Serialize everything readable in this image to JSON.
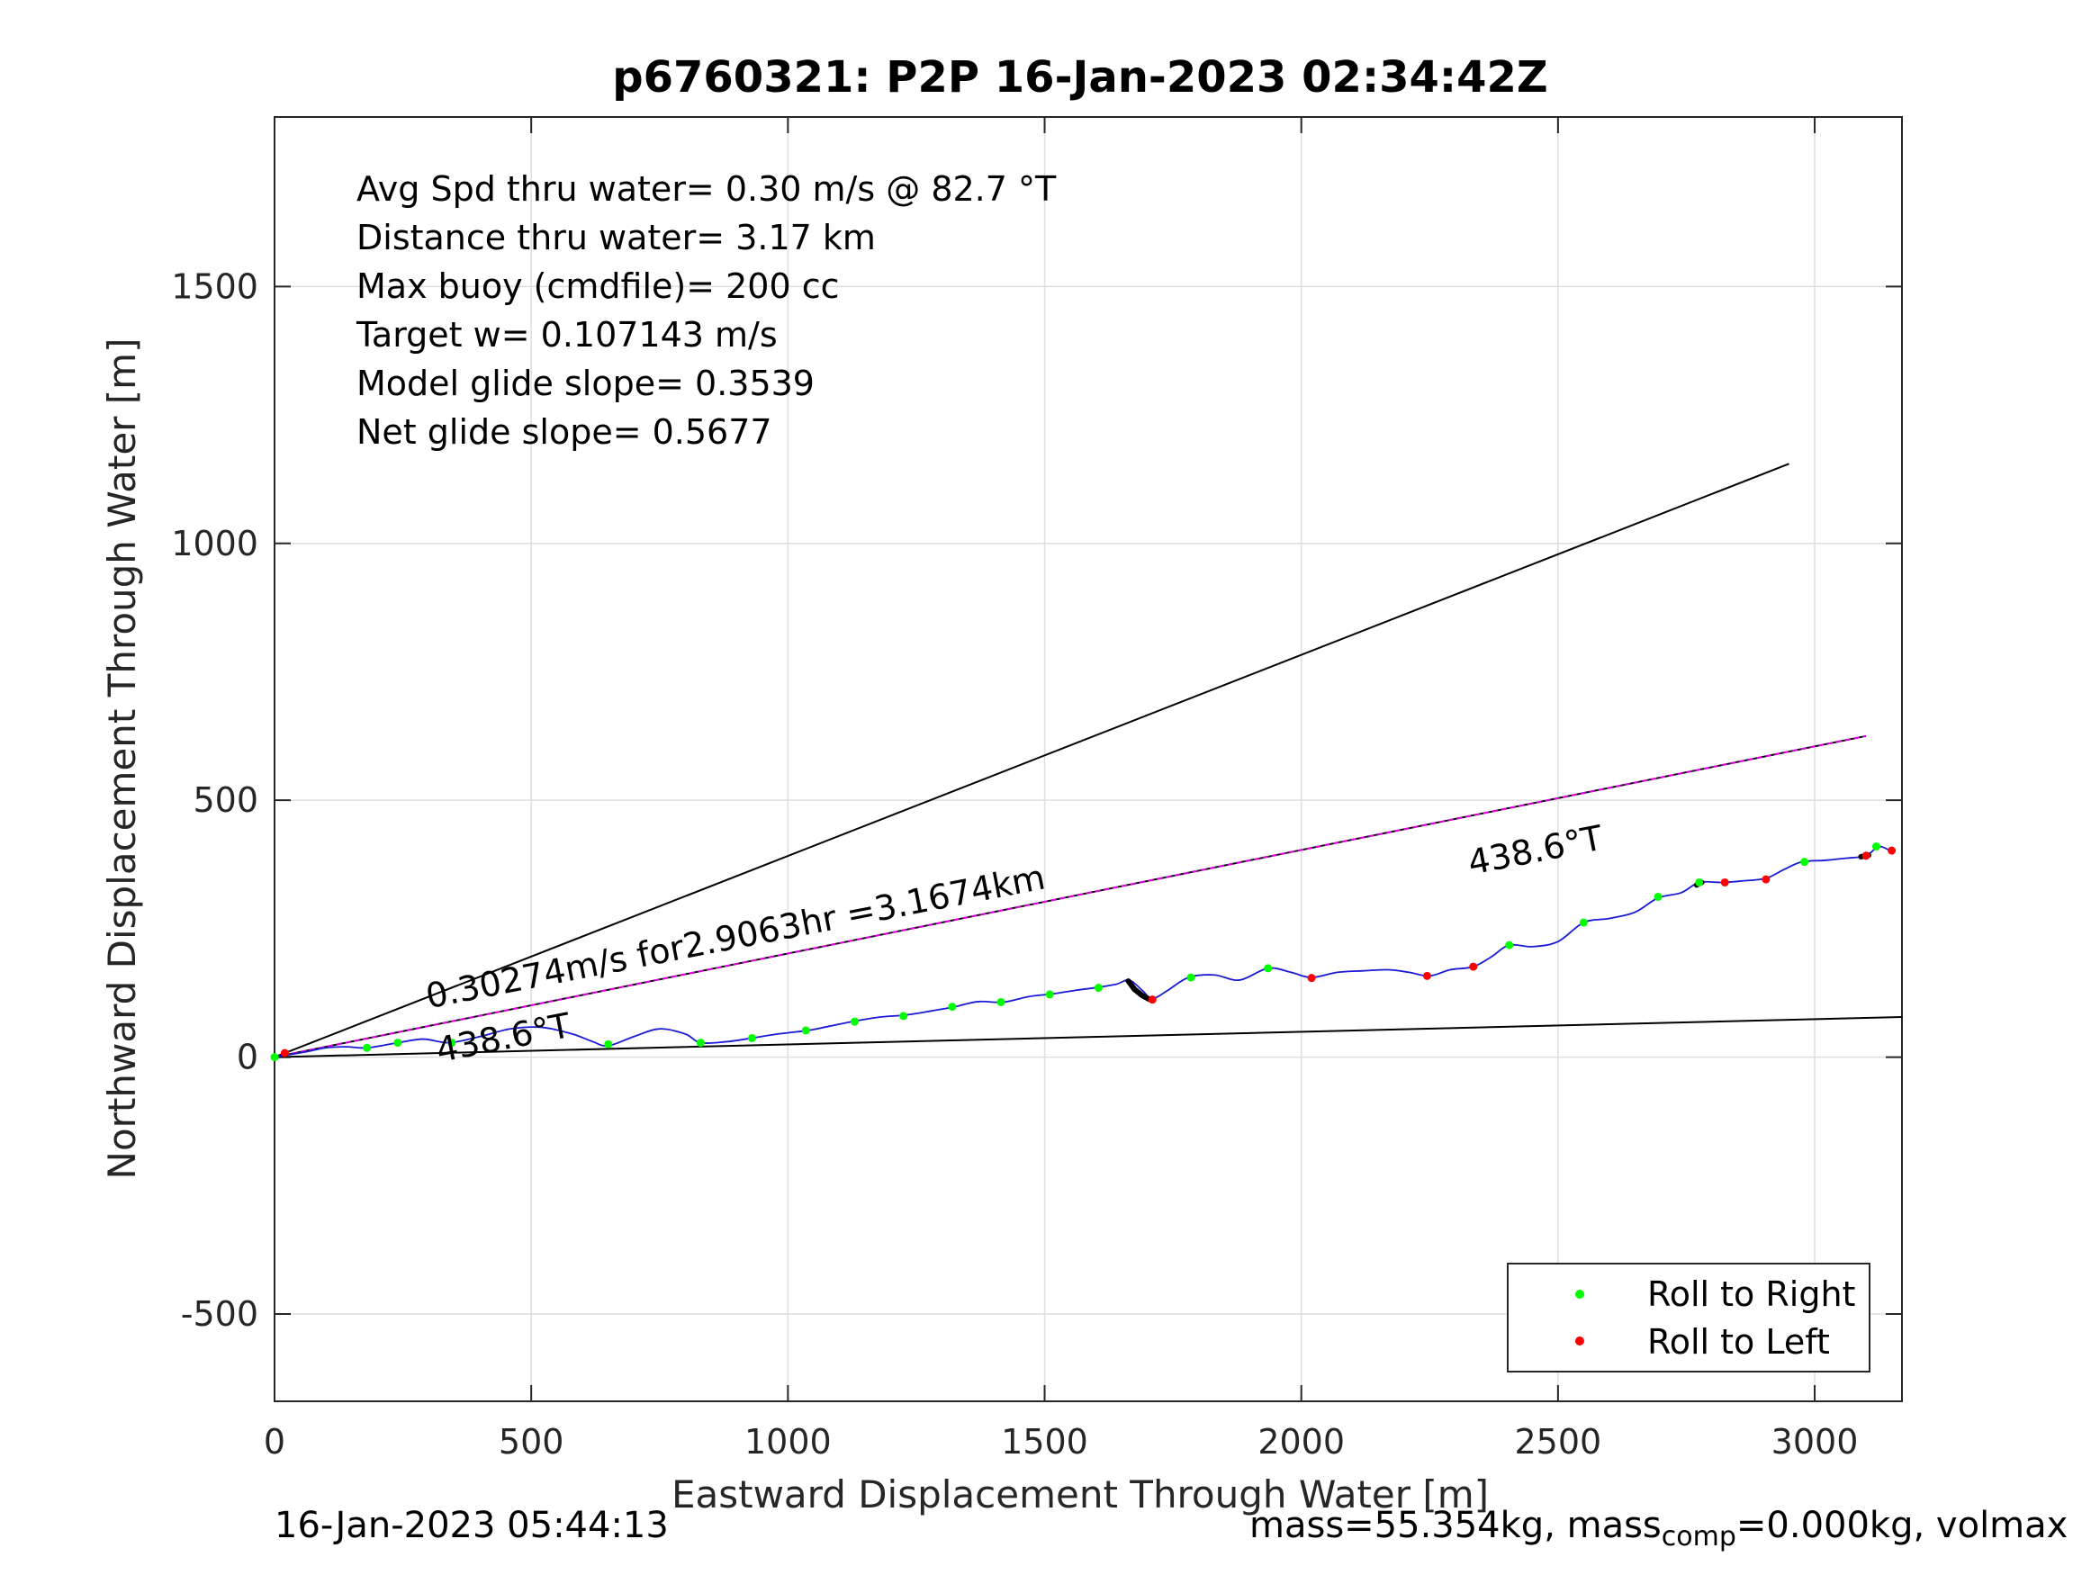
{
  "title": "p6760321: P2P 16-Jan-2023 02:34:42Z",
  "footer": {
    "left": "16-Jan-2023 05:44:13",
    "right_pre": "mass=55.354kg, mass",
    "right_sub": "comp",
    "right_post": "=0.000kg, volmax"
  },
  "chart_data": {
    "type": "line",
    "title": "p6760321: P2P 16-Jan-2023 02:34:42Z",
    "xlabel": "Eastward Displacement Through Water [m]",
    "ylabel": "Northward Displacement Through Water [m]",
    "xlim": [
      0,
      3170
    ],
    "ylim": [
      -670,
      1830
    ],
    "xticks": [
      0,
      500,
      1000,
      1500,
      2000,
      2500,
      3000
    ],
    "yticks": [
      -500,
      0,
      500,
      1000,
      1500
    ],
    "grid": true,
    "legend_position": "bottom-right",
    "info_lines": [
      "Avg Spd thru water=  0.30 m/s @  82.7 °T",
      "Distance thru water=  3.17 km",
      "Max buoy (cmdfile)= 200 cc",
      "Target w= 0.107143 m/s",
      "Model glide slope= 0.3539",
      "Net glide slope= 0.5677"
    ],
    "annotations": [
      {
        "text": "0.30274m/s for2.9063hr =3.1674km",
        "x": 300,
        "y": 95,
        "angle": 11
      },
      {
        "text": "438.6°T",
        "x": 320,
        "y": -10,
        "angle": 11
      },
      {
        "text": "438.6°T",
        "x": 2330,
        "y": 355,
        "angle": 11
      }
    ],
    "lines": [
      {
        "id": "upper-bound",
        "color": "#000000",
        "x": [
          0,
          2950
        ],
        "y": [
          0,
          1155
        ]
      },
      {
        "id": "lower-bound",
        "color": "#000000",
        "x": [
          0,
          3170
        ],
        "y": [
          0,
          78
        ]
      },
      {
        "id": "heading-line",
        "color": "#000000",
        "x": [
          0,
          3100
        ],
        "y": [
          0,
          625
        ]
      },
      {
        "id": "heading-line-overlay",
        "color": "#e000e0",
        "dashed": true,
        "x": [
          0,
          3100
        ],
        "y": [
          0,
          625
        ]
      }
    ],
    "track": {
      "color": "#1a1ad6",
      "x": [
        0,
        30,
        60,
        100,
        140,
        180,
        240,
        290,
        340,
        400,
        460,
        520,
        580,
        620,
        650,
        700,
        750,
        800,
        830,
        880,
        930,
        980,
        1040,
        1080,
        1130,
        1180,
        1230,
        1280,
        1325,
        1370,
        1420,
        1470,
        1515,
        1560,
        1605,
        1640,
        1665,
        1690,
        1710,
        1740,
        1780,
        1830,
        1880,
        1935,
        1980,
        2020,
        2070,
        2120,
        2170,
        2210,
        2250,
        2290,
        2335,
        2370,
        2405,
        2450,
        2500,
        2550,
        2600,
        2650,
        2695,
        2740,
        2775,
        2820,
        2860,
        2905,
        2940,
        2975,
        3020,
        3060,
        3100,
        3125,
        3150
      ],
      "y": [
        0,
        5,
        10,
        18,
        20,
        18,
        28,
        35,
        28,
        40,
        55,
        58,
        45,
        30,
        22,
        40,
        55,
        45,
        28,
        30,
        37,
        45,
        52,
        60,
        70,
        78,
        82,
        90,
        98,
        108,
        107,
        118,
        123,
        130,
        136,
        142,
        150,
        130,
        114,
        130,
        155,
        160,
        150,
        173,
        165,
        155,
        165,
        168,
        170,
        165,
        158,
        170,
        176,
        195,
        218,
        215,
        225,
        262,
        270,
        282,
        310,
        320,
        340,
        340,
        343,
        348,
        365,
        380,
        383,
        387,
        392,
        410,
        400
      ]
    },
    "series": [
      {
        "name": "Roll to Right",
        "color": "#00ff00",
        "x": [
          0,
          180,
          240,
          345,
          650,
          830,
          930,
          1035,
          1130,
          1225,
          1320,
          1415,
          1510,
          1605,
          1785,
          1935,
          2405,
          2550,
          2695,
          2775,
          2980,
          3120
        ],
        "y": [
          0,
          18,
          28,
          28,
          25,
          28,
          37,
          52,
          69,
          80,
          98,
          107,
          122,
          135,
          155,
          173,
          218,
          262,
          312,
          340,
          380,
          410
        ]
      },
      {
        "name": "Roll to Left",
        "color": "#ff0000",
        "x": [
          20,
          1710,
          2020,
          2245,
          2335,
          2825,
          2905,
          3100,
          3150
        ],
        "y": [
          8,
          112,
          154,
          158,
          176,
          340,
          346,
          392,
          402
        ]
      }
    ],
    "black_segments": [
      {
        "x": [
          1663,
          1675,
          1690,
          1705
        ],
        "y": [
          148,
          132,
          120,
          112
        ]
      },
      {
        "x": [
          3090,
          3105
        ],
        "y": [
          390,
          393
        ]
      },
      {
        "x": [
          2770,
          2780
        ],
        "y": [
          335,
          340
        ]
      }
    ]
  }
}
